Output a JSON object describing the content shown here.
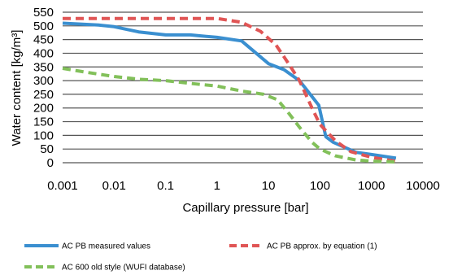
{
  "chart_data": {
    "type": "line",
    "xscale": "log",
    "xlabel": "Capillary pressure [bar]",
    "ylabel": "Water content [kg/m³]",
    "xlim": [
      0.001,
      10000
    ],
    "ylim": [
      0,
      550
    ],
    "x_ticks": [
      "0.001",
      "0.01",
      "0.1",
      "1",
      "10",
      "100",
      "1000",
      "10000"
    ],
    "y_ticks": [
      "0",
      "50",
      "100",
      "150",
      "200",
      "250",
      "300",
      "350",
      "400",
      "450",
      "500",
      "550"
    ],
    "grid": true,
    "legend_position": "bottom",
    "series": [
      {
        "name": "AC PB measured values",
        "color": "#3a8fd0",
        "style": "solid",
        "points": [
          [
            0.001,
            510
          ],
          [
            0.005,
            503
          ],
          [
            0.01,
            497
          ],
          [
            0.03,
            478
          ],
          [
            0.1,
            467
          ],
          [
            0.3,
            467
          ],
          [
            1,
            458
          ],
          [
            3,
            445
          ],
          [
            10,
            362
          ],
          [
            20,
            340
          ],
          [
            40,
            300
          ],
          [
            95,
            210
          ],
          [
            130,
            95
          ],
          [
            180,
            75
          ],
          [
            500,
            38
          ],
          [
            1000,
            30
          ],
          [
            3000,
            17
          ]
        ]
      },
      {
        "name": "AC PB approx. by equation (1)",
        "color": "#e05555",
        "style": "dashed",
        "points": [
          [
            0.001,
            527
          ],
          [
            0.01,
            527
          ],
          [
            0.1,
            527
          ],
          [
            1,
            527
          ],
          [
            3,
            513
          ],
          [
            7,
            480
          ],
          [
            14,
            430
          ],
          [
            25,
            360
          ],
          [
            40,
            300
          ],
          [
            70,
            200
          ],
          [
            100,
            140
          ],
          [
            200,
            80
          ],
          [
            400,
            40
          ],
          [
            1000,
            20
          ],
          [
            3000,
            5
          ]
        ]
      },
      {
        "name": "AC 600 old style (WUFI database)",
        "color": "#82c05a",
        "style": "dashed",
        "points": [
          [
            0.001,
            345
          ],
          [
            0.003,
            330
          ],
          [
            0.01,
            315
          ],
          [
            0.03,
            305
          ],
          [
            0.1,
            300
          ],
          [
            0.3,
            290
          ],
          [
            1,
            280
          ],
          [
            3,
            262
          ],
          [
            8,
            250
          ],
          [
            15,
            230
          ],
          [
            25,
            180
          ],
          [
            40,
            130
          ],
          [
            70,
            75
          ],
          [
            100,
            50
          ],
          [
            200,
            25
          ],
          [
            500,
            10
          ],
          [
            1000,
            6
          ],
          [
            3000,
            3
          ]
        ]
      }
    ]
  }
}
